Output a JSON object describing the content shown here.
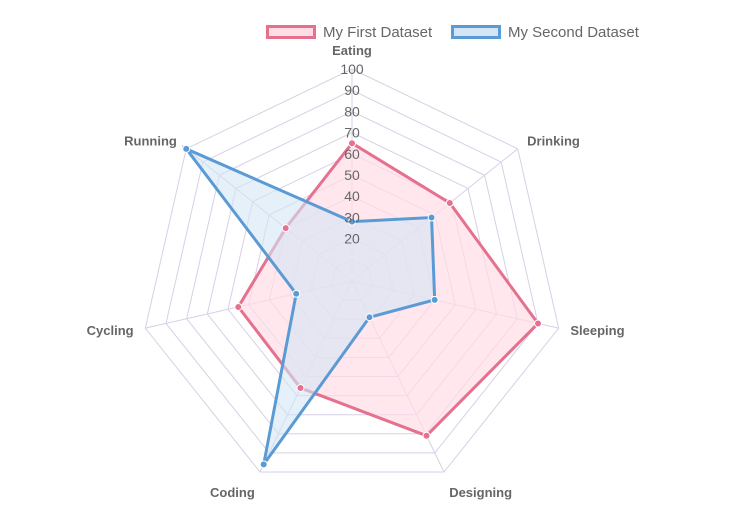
{
  "chart_data": {
    "type": "radar",
    "labels": [
      "Eating",
      "Drinking",
      "Sleeping",
      "Designing",
      "Coding",
      "Cycling",
      "Running"
    ],
    "r_ticks": [
      "20",
      "30",
      "40",
      "50",
      "60",
      "70",
      "80",
      "90",
      "100"
    ],
    "r_range": [
      0,
      100
    ],
    "legend_position": "top",
    "series": [
      {
        "name": "My First Dataset",
        "values": [
          65,
          59,
          90,
          81,
          56,
          55,
          40
        ],
        "border_color": "#e5718e",
        "fill_color": "#ffdde5"
      },
      {
        "name": "My Second Dataset",
        "values": [
          28,
          48,
          40,
          19,
          96,
          27,
          100
        ],
        "border_color": "#5b9bd5",
        "fill_color": "#d3e6f5"
      }
    ],
    "grid_color": "#d6d0e6",
    "label_color": "#666666"
  }
}
